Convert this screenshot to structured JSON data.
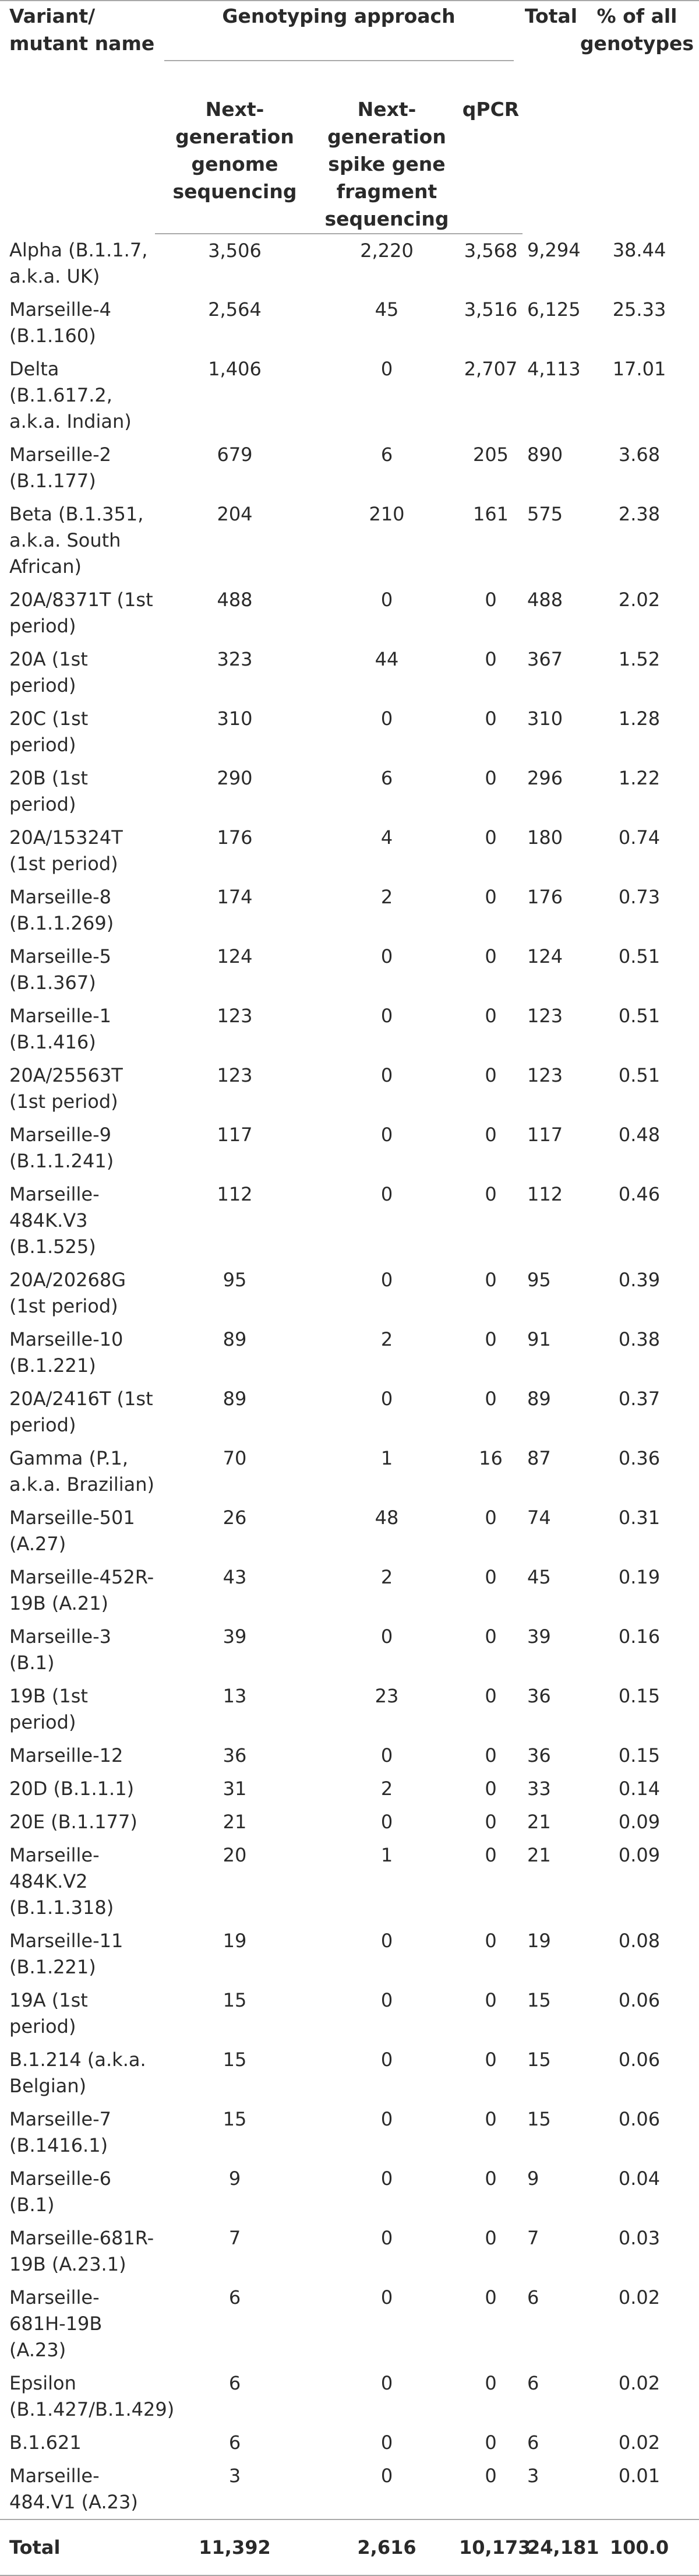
{
  "headers": {
    "name": "Variant/ mutant name",
    "approach": "Genotyping approach",
    "total": "Total",
    "pct": "% of all genotypes",
    "ngs_genome": "Next-generation genome sequencing",
    "ngs_spike": "Next-generation spike gene fragment sequencing",
    "qpcr": "qPCR"
  },
  "rows": [
    {
      "name": "Alpha (B.1.1.7, a.k.a. UK)",
      "genome": "3,506",
      "spike": "2,220",
      "qpcr": "3,568",
      "total": "9,294",
      "pct": "38.44"
    },
    {
      "name": "Marseille-4 (B.1.160)",
      "genome": "2,564",
      "spike": "45",
      "qpcr": "3,516",
      "total": "6,125",
      "pct": "25.33"
    },
    {
      "name": "Delta (B.1.617.2, a.k.a. Indian)",
      "genome": "1,406",
      "spike": "0",
      "qpcr": "2,707",
      "total": "4,113",
      "pct": "17.01"
    },
    {
      "name": "Marseille-2 (B.1.177)",
      "genome": "679",
      "spike": "6",
      "qpcr": "205",
      "total": "890",
      "pct": "3.68"
    },
    {
      "name": "Beta (B.1.351, a.k.a. South African)",
      "genome": "204",
      "spike": "210",
      "qpcr": "161",
      "total": "575",
      "pct": "2.38"
    },
    {
      "name": "20A/8371T (1st period)",
      "genome": "488",
      "spike": "0",
      "qpcr": "0",
      "total": "488",
      "pct": "2.02"
    },
    {
      "name": "20A (1st period)",
      "genome": "323",
      "spike": "44",
      "qpcr": "0",
      "total": "367",
      "pct": "1.52"
    },
    {
      "name": "20C (1st period)",
      "genome": "310",
      "spike": "0",
      "qpcr": "0",
      "total": "310",
      "pct": "1.28"
    },
    {
      "name": "20B (1st period)",
      "genome": "290",
      "spike": "6",
      "qpcr": "0",
      "total": "296",
      "pct": "1.22"
    },
    {
      "name": "20A/15324T (1st period)",
      "genome": "176",
      "spike": "4",
      "qpcr": "0",
      "total": "180",
      "pct": "0.74"
    },
    {
      "name": "Marseille-8 (B.1.1.269)",
      "genome": "174",
      "spike": "2",
      "qpcr": "0",
      "total": "176",
      "pct": "0.73"
    },
    {
      "name": "Marseille-5 (B.1.367)",
      "genome": "124",
      "spike": "0",
      "qpcr": "0",
      "total": "124",
      "pct": "0.51"
    },
    {
      "name": "Marseille-1 (B.1.416)",
      "genome": "123",
      "spike": "0",
      "qpcr": "0",
      "total": "123",
      "pct": "0.51"
    },
    {
      "name": "20A/25563T (1st period)",
      "genome": "123",
      "spike": "0",
      "qpcr": "0",
      "total": "123",
      "pct": "0.51"
    },
    {
      "name": "Marseille-9 (B.1.1.241)",
      "genome": "117",
      "spike": "0",
      "qpcr": "0",
      "total": "117",
      "pct": "0.48"
    },
    {
      "name": "Marseille-484K.V3 (B.1.525)",
      "genome": "112",
      "spike": "0",
      "qpcr": "0",
      "total": "112",
      "pct": "0.46"
    },
    {
      "name": "20A/20268G (1st period)",
      "genome": "95",
      "spike": "0",
      "qpcr": "0",
      "total": "95",
      "pct": "0.39"
    },
    {
      "name": "Marseille-10 (B.1.221)",
      "genome": "89",
      "spike": "2",
      "qpcr": "0",
      "total": "91",
      "pct": "0.38"
    },
    {
      "name": "20A/2416T (1st period)",
      "genome": "89",
      "spike": "0",
      "qpcr": "0",
      "total": "89",
      "pct": "0.37"
    },
    {
      "name": "Gamma (P.1, a.k.a. Brazilian)",
      "genome": "70",
      "spike": "1",
      "qpcr": "16",
      "total": "87",
      "pct": "0.36"
    },
    {
      "name": "Marseille-501 (A.27)",
      "genome": "26",
      "spike": "48",
      "qpcr": "0",
      "total": "74",
      "pct": "0.31"
    },
    {
      "name": "Marseille-452R-19B (A.21)",
      "genome": "43",
      "spike": "2",
      "qpcr": "0",
      "total": "45",
      "pct": "0.19"
    },
    {
      "name": "Marseille-3 (B.1)",
      "genome": "39",
      "spike": "0",
      "qpcr": "0",
      "total": "39",
      "pct": "0.16"
    },
    {
      "name": "19B (1st period)",
      "genome": "13",
      "spike": "23",
      "qpcr": "0",
      "total": "36",
      "pct": "0.15"
    },
    {
      "name": "Marseille-12",
      "genome": "36",
      "spike": "0",
      "qpcr": "0",
      "total": "36",
      "pct": "0.15"
    },
    {
      "name": "20D (B.1.1.1)",
      "genome": "31",
      "spike": "2",
      "qpcr": "0",
      "total": "33",
      "pct": "0.14"
    },
    {
      "name": "20E (B.1.177)",
      "genome": "21",
      "spike": "0",
      "qpcr": "0",
      "total": "21",
      "pct": "0.09"
    },
    {
      "name": "Marseille-484K.V2 (B.1.1.318)",
      "genome": "20",
      "spike": "1",
      "qpcr": "0",
      "total": "21",
      "pct": "0.09"
    },
    {
      "name": "Marseille-11 (B.1.221)",
      "genome": "19",
      "spike": "0",
      "qpcr": "0",
      "total": "19",
      "pct": "0.08"
    },
    {
      "name": "19A (1st period)",
      "genome": "15",
      "spike": "0",
      "qpcr": "0",
      "total": "15",
      "pct": "0.06"
    },
    {
      "name": "B.1.214 (a.k.a. Belgian)",
      "genome": "15",
      "spike": "0",
      "qpcr": "0",
      "total": "15",
      "pct": "0.06"
    },
    {
      "name": "Marseille-7 (B.1416.1)",
      "genome": "15",
      "spike": "0",
      "qpcr": "0",
      "total": "15",
      "pct": "0.06"
    },
    {
      "name": "Marseille-6 (B.1)",
      "genome": "9",
      "spike": "0",
      "qpcr": "0",
      "total": "9",
      "pct": "0.04"
    },
    {
      "name": "Marseille-681R-19B (A.23.1)",
      "genome": "7",
      "spike": "0",
      "qpcr": "0",
      "total": "7",
      "pct": "0.03"
    },
    {
      "name": "Marseille-681H-19B (A.23)",
      "genome": "6",
      "spike": "0",
      "qpcr": "0",
      "total": "6",
      "pct": "0.02"
    },
    {
      "name": "Epsilon (B.1.427/B.1.429)",
      "genome": "6",
      "spike": "0",
      "qpcr": "0",
      "total": "6",
      "pct": "0.02"
    },
    {
      "name": "B.1.621",
      "genome": "6",
      "spike": "0",
      "qpcr": "0",
      "total": "6",
      "pct": "0.02"
    },
    {
      "name": "Marseille-484.V1 (A.23)",
      "genome": "3",
      "spike": "0",
      "qpcr": "0",
      "total": "3",
      "pct": "0.01"
    }
  ],
  "total_row": {
    "name": "Total",
    "genome": "11,392",
    "spike": "2,616",
    "qpcr": "10,173",
    "total": "24,181",
    "pct": "100.0"
  }
}
